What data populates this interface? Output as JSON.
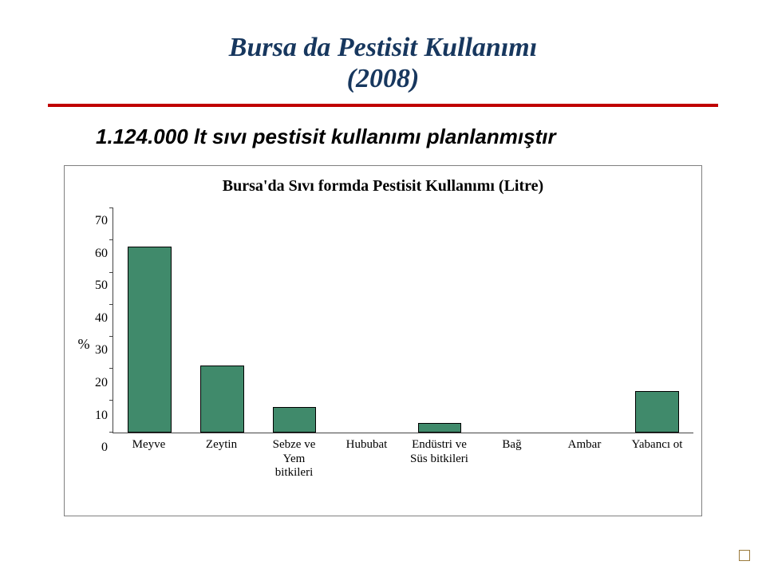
{
  "title_line1": "Bursa da Pestisit Kullanımı",
  "title_line2": "(2008)",
  "subtitle": "1.124.000 lt sıvı pestisit kullanımı planlanmıştır",
  "chart": {
    "type": "bar",
    "title": "Bursa'da Sıvı formda Pestisit Kullanımı (Litre)",
    "ylabel": "%",
    "ymin": 0,
    "ymax": 70,
    "ytick_step": 10,
    "bar_color": "#408a6b",
    "bar_border": "#000000",
    "plot_border": "#444444",
    "background": "#ffffff",
    "bar_width": 0.6,
    "title_fontsize": 20,
    "tick_fontsize": 16,
    "categories": [
      "Meyve",
      "Zeytin",
      "Sebze ve\nYem\nbitkileri",
      "Hububat",
      "Endüstri ve\nSüs bitkileri",
      "Bağ",
      "Ambar",
      "Yabancı ot"
    ],
    "values": [
      58,
      21,
      8,
      0,
      3,
      0,
      0,
      13
    ]
  },
  "colors": {
    "title": "#17375e",
    "rule": "#c00000",
    "corner_bullet_border": "#9a7a3c"
  }
}
